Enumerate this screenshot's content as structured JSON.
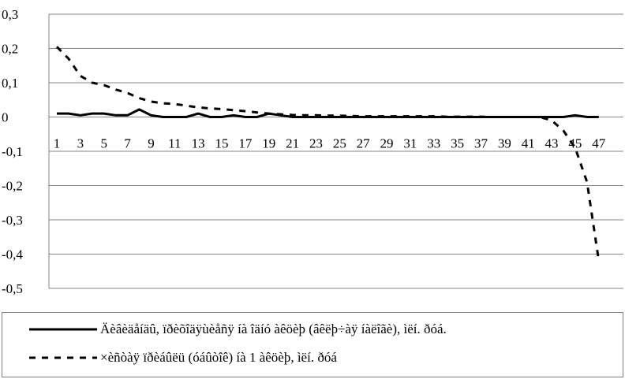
{
  "chart_data": {
    "type": "line",
    "x": [
      1,
      2,
      3,
      4,
      5,
      6,
      7,
      8,
      9,
      10,
      11,
      12,
      13,
      14,
      15,
      16,
      17,
      18,
      19,
      20,
      21,
      22,
      23,
      24,
      25,
      26,
      27,
      28,
      29,
      30,
      31,
      32,
      33,
      34,
      35,
      36,
      37,
      38,
      39,
      40,
      41,
      42,
      43,
      44,
      45,
      46,
      47
    ],
    "x_tick_labels": [
      "1",
      "3",
      "5",
      "7",
      "9",
      "11",
      "13",
      "15",
      "17",
      "19",
      "21",
      "23",
      "25",
      "27",
      "29",
      "31",
      "33",
      "35",
      "37",
      "39",
      "41",
      "43",
      "45",
      "47"
    ],
    "y_tick_labels": [
      "0,3",
      "0,2",
      "0,1",
      "0",
      "-0,1",
      "-0,2",
      "-0,3",
      "-0,4",
      "-0,5"
    ],
    "ylim": [
      -0.5,
      0.3
    ],
    "y_ticks": [
      0.3,
      0.2,
      0.1,
      0,
      -0.1,
      -0.2,
      -0.3,
      -0.4,
      -0.5
    ],
    "grid": true,
    "legend_position": "bottom",
    "series": [
      {
        "name": "Äèâèäåíäû, ïðèõîäÿùèåñÿ íà îäíó àêöèþ (âêëþ÷àÿ íàëîãè), ìëí. ðóá.",
        "style": "solid",
        "color": "#000000",
        "values": [
          0.01,
          0.01,
          0.005,
          0.01,
          0.01,
          0.005,
          0.005,
          0.022,
          0.005,
          0.0,
          0.0,
          0.0,
          0.01,
          0.0,
          0.0,
          0.005,
          0.0,
          0.0,
          0.01,
          0.005,
          0,
          0,
          0,
          0,
          0,
          0,
          0,
          0,
          0,
          0,
          0,
          0,
          0,
          0,
          0,
          0,
          0,
          0,
          0,
          0,
          0,
          0,
          0,
          0,
          0.005,
          0.0,
          0.0
        ]
      },
      {
        "name": "×èñòàÿ ïðèáûëü (óáûòîê) íà 1 àêöèþ, ìëí. ðóá",
        "style": "dashed",
        "color": "#000000",
        "values": [
          0.205,
          0.17,
          0.12,
          0.1,
          0.093,
          0.08,
          0.07,
          0.055,
          0.045,
          0.04,
          0.038,
          0.033,
          0.028,
          0.025,
          0.023,
          0.02,
          0.017,
          0.013,
          0.01,
          0.008,
          0.006,
          0.005,
          0.005,
          0.004,
          0.004,
          0.003,
          0.002,
          0.002,
          0.002,
          0.002,
          0.002,
          0.002,
          0.002,
          0.001,
          0.001,
          0.001,
          0.001,
          0.0,
          0.0,
          0.0,
          0.0,
          0.0,
          -0.01,
          -0.04,
          -0.09,
          -0.19,
          -0.42
        ]
      }
    ]
  }
}
